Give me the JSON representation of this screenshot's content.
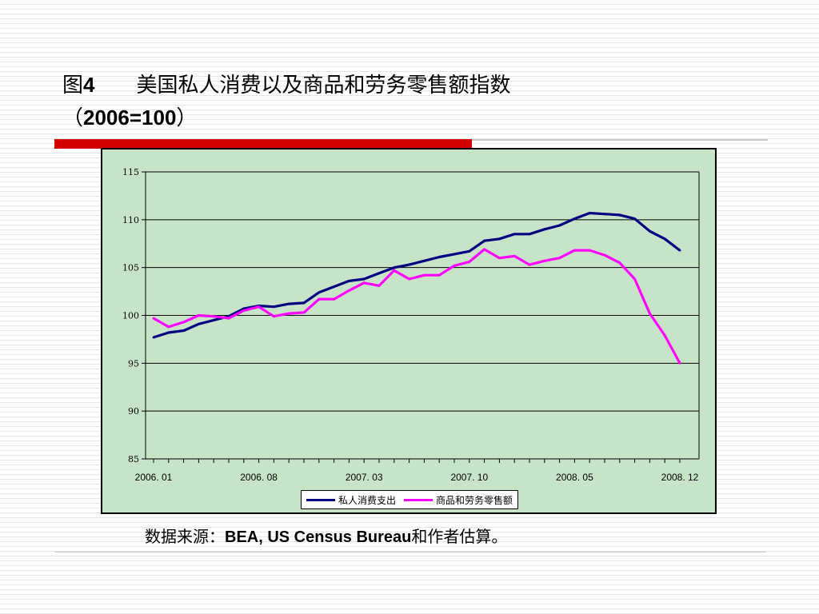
{
  "slide": {
    "title_prefix": "图",
    "title_num": "4",
    "title_main": "美国私人消费以及商品和劳务零售额指数",
    "title_paren_open": "（",
    "title_base": "2006=100",
    "title_paren_close": "）",
    "source_prefix": "数据来源：",
    "source_bold": "BEA, US Census Bureau",
    "source_suffix": "和作者估算。"
  },
  "colors": {
    "series_consumption": "#000080",
    "series_retail": "#ff00ff",
    "plot_bg": "#c8e4c8",
    "accent_rule": "#d40000"
  },
  "chart_data": {
    "type": "line",
    "title": "",
    "xlabel": "",
    "ylabel": "",
    "ylim": [
      85,
      115
    ],
    "yticks": [
      "115",
      "110",
      "105",
      "100",
      "95",
      "90",
      "85"
    ],
    "xticks": [
      "2006. 01",
      "2006. 08",
      "2007. 03",
      "2007. 10",
      "2008. 05",
      "2008. 12"
    ],
    "grid": true,
    "legend_position": "bottom",
    "x": [
      "2006-01",
      "2006-02",
      "2006-03",
      "2006-04",
      "2006-05",
      "2006-06",
      "2006-07",
      "2006-08",
      "2006-09",
      "2006-10",
      "2006-11",
      "2006-12",
      "2007-01",
      "2007-02",
      "2007-03",
      "2007-04",
      "2007-05",
      "2007-06",
      "2007-07",
      "2007-08",
      "2007-09",
      "2007-10",
      "2007-11",
      "2007-12",
      "2008-01",
      "2008-02",
      "2008-03",
      "2008-04",
      "2008-05",
      "2008-06",
      "2008-07",
      "2008-08",
      "2008-09",
      "2008-10",
      "2008-11",
      "2008-12"
    ],
    "series": [
      {
        "name": "私人消费支出",
        "color": "#000080",
        "values": [
          97.7,
          98.2,
          98.4,
          99.1,
          99.5,
          99.9,
          100.7,
          101.0,
          100.9,
          101.2,
          101.3,
          102.4,
          103.0,
          103.6,
          103.8,
          104.4,
          105.0,
          105.3,
          105.7,
          106.1,
          106.4,
          106.7,
          107.8,
          108.0,
          108.5,
          108.5,
          109.0,
          109.4,
          110.1,
          110.7,
          110.6,
          110.5,
          110.1,
          108.8,
          108.0,
          106.8
        ]
      },
      {
        "name": "商品和劳务零售额",
        "color": "#ff00ff",
        "values": [
          99.7,
          98.8,
          99.3,
          100.0,
          99.9,
          99.7,
          100.5,
          100.9,
          99.9,
          100.2,
          100.3,
          101.7,
          101.7,
          102.6,
          103.4,
          103.1,
          104.7,
          103.8,
          104.2,
          104.2,
          105.2,
          105.6,
          106.9,
          106.0,
          106.2,
          105.3,
          105.7,
          106.0,
          106.8,
          106.8,
          106.3,
          105.5,
          103.8,
          100.2,
          97.9,
          95.0
        ]
      }
    ]
  }
}
